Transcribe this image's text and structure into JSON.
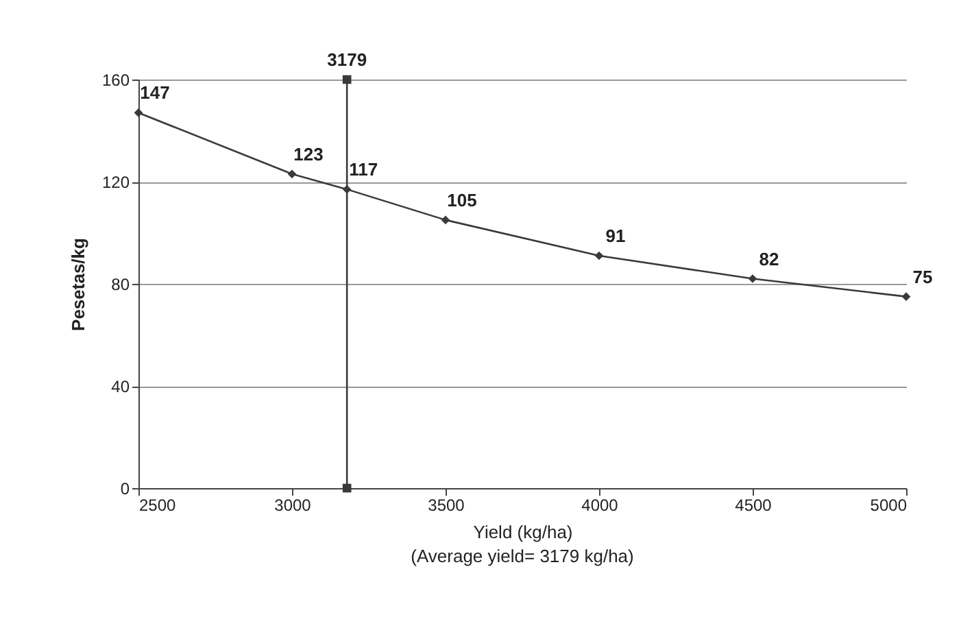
{
  "chart_data": {
    "type": "line",
    "xlabel": "Yield (kg/ha)",
    "ylabel": "Pesetas/kg",
    "x": [
      2500,
      3000,
      3179,
      3500,
      4000,
      4500,
      5000
    ],
    "series": [
      {
        "color": "#3a3a3a",
        "marker": "diamond",
        "values": [
          147,
          123,
          117,
          105,
          91,
          82,
          75
        ],
        "value_labels": [
          "147",
          "123",
          "117",
          "105",
          "91",
          "82",
          "75"
        ]
      },
      {
        "color": "#3a3a3a",
        "marker": "square",
        "x": [
          3179,
          3179
        ],
        "values": [
          0,
          160
        ]
      }
    ],
    "annotations": [
      {
        "text": "3179",
        "x": 3179,
        "y": 160
      },
      "(Average yield= 3179 kg/ha)"
    ],
    "xlim": [
      2500,
      5000
    ],
    "xticks": [
      2500,
      3000,
      3500,
      4000,
      4500,
      5000
    ],
    "ylim": [
      0,
      160
    ],
    "yticks": [
      0,
      40,
      80,
      120,
      160
    ],
    "grid": "y"
  }
}
